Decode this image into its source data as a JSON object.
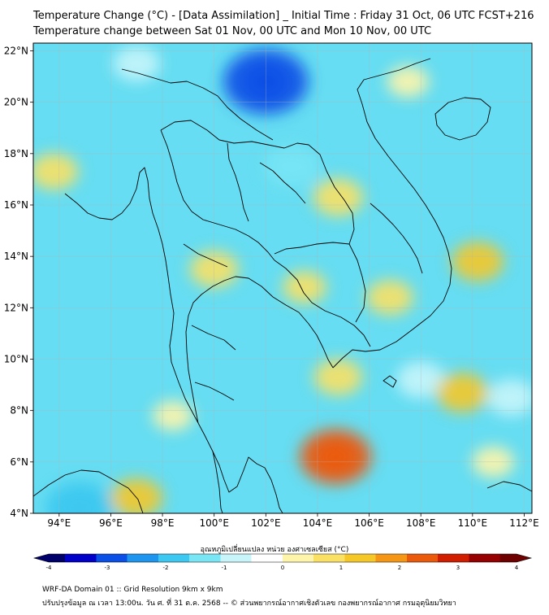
{
  "header": {
    "title_line1": "Temperature Change (°C) - [Data Assimilation] _ Initial Time : Friday 31 Oct, 06 UTC FCST+216",
    "title_line2": "Temperature change between Sat 01 Nov, 00 UTC and Mon 10 Nov, 00 UTC"
  },
  "map": {
    "lat_ticks": [
      "22°N",
      "20°N",
      "18°N",
      "16°N",
      "14°N",
      "12°N",
      "10°N",
      "8°N",
      "6°N",
      "4°N"
    ],
    "lon_ticks": [
      "94°E",
      "96°E",
      "98°E",
      "100°E",
      "102°E",
      "104°E",
      "106°E",
      "108°E",
      "110°E",
      "112°E"
    ],
    "lat_range": [
      4,
      22.3
    ],
    "lon_range": [
      93,
      112.3
    ],
    "background_color": "#66ddf2",
    "warm_anomalies": [
      {
        "lon": 93.8,
        "lat": 17.3,
        "value": 0.8
      },
      {
        "lon": 97.0,
        "lat": 4.6,
        "value": 1.0
      },
      {
        "lon": 98.4,
        "lat": 7.8,
        "value": 0.3
      },
      {
        "lon": 100.0,
        "lat": 13.5,
        "value": 0.8
      },
      {
        "lon": 103.5,
        "lat": 12.8,
        "value": 0.5
      },
      {
        "lon": 104.7,
        "lat": 6.2,
        "value": 2.2
      },
      {
        "lon": 104.8,
        "lat": 9.3,
        "value": 0.8
      },
      {
        "lon": 104.8,
        "lat": 16.3,
        "value": 0.9
      },
      {
        "lon": 106.8,
        "lat": 12.4,
        "value": 0.7
      },
      {
        "lon": 109.6,
        "lat": 8.7,
        "value": 1.0
      },
      {
        "lon": 110.2,
        "lat": 13.8,
        "value": 1.0
      },
      {
        "lon": 107.5,
        "lat": 20.8,
        "value": 0.4
      },
      {
        "lon": 110.8,
        "lat": 6.0,
        "value": 0.4
      }
    ],
    "cold_anomalies": [
      {
        "lon": 102.0,
        "lat": 20.8,
        "value": -3.0
      },
      {
        "lon": 94.8,
        "lat": 4.2,
        "value": -2.0
      },
      {
        "lon": 103.0,
        "lat": 17.5,
        "value": -1.2
      },
      {
        "lon": 108.0,
        "lat": 9.2,
        "value": -0.8
      },
      {
        "lon": 111.5,
        "lat": 8.5,
        "value": -0.8
      },
      {
        "lon": 97.0,
        "lat": 21.5,
        "value": -0.7
      }
    ]
  },
  "colorbar": {
    "title": "อุณหภูมิเปลี่ยนแปลง หน่วย องศาเซลเซียส (°C)",
    "range": [
      -4,
      4
    ],
    "tick_labels": [
      "-4",
      "-3",
      "-2",
      "-1",
      "0",
      "1",
      "2",
      "3",
      "4"
    ],
    "colors": [
      "#00006a",
      "#0000c8",
      "#0a50e6",
      "#1e96f0",
      "#3cc8f0",
      "#78e6f5",
      "#c8f5fa",
      "#ffffff",
      "#fff5aa",
      "#fae164",
      "#f5c828",
      "#f59614",
      "#eb5a0a",
      "#d21e00",
      "#960000",
      "#6e0000"
    ]
  },
  "footer": {
    "line1": "WRF-DA Domain 01 :: Grid Resolution 9km x 9km",
    "line2": "ปรับปรุงข้อมูล ณ เวลา 13:00น. วัน ศ. ที่ 31 ต.ค. 2568 -- © ส่วนพยากรณ์อากาศเชิงตัวเลข กองพยากรณ์อากาศ กรมอุตุนิยมวิทยา"
  }
}
